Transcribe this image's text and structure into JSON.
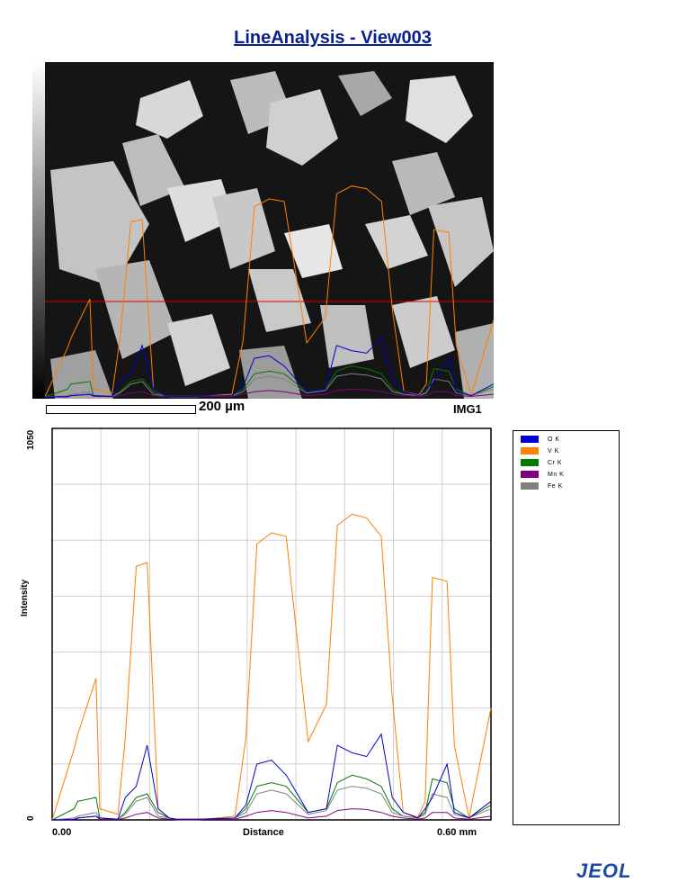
{
  "title": "LineAnalysis - View003",
  "image": {
    "scale_label": "200 µm",
    "image_label": "IMG1"
  },
  "chart_data": {
    "type": "line",
    "xlabel": "Distance",
    "ylabel": "Intensity",
    "x_tick_labels": [
      "0.00",
      "0.60 mm"
    ],
    "y_tick_labels": [
      "0",
      "1050"
    ],
    "xlim": [
      0,
      0.6
    ],
    "ylim": [
      0,
      1050
    ],
    "grid": true,
    "legend": "right",
    "x": [
      0.0,
      0.03,
      0.035,
      0.06,
      0.065,
      0.09,
      0.1,
      0.115,
      0.13,
      0.145,
      0.16,
      0.17,
      0.2,
      0.25,
      0.265,
      0.28,
      0.3,
      0.32,
      0.35,
      0.375,
      0.39,
      0.41,
      0.43,
      0.45,
      0.465,
      0.48,
      0.5,
      0.51,
      0.52,
      0.54,
      0.55,
      0.57,
      0.6
    ],
    "series": [
      {
        "name": "O K",
        "color": "#0000cc",
        "values": [
          0,
          0,
          5,
          10,
          5,
          2,
          60,
          90,
          200,
          30,
          5,
          2,
          2,
          5,
          40,
          150,
          160,
          120,
          20,
          30,
          200,
          180,
          170,
          230,
          60,
          20,
          5,
          30,
          60,
          150,
          20,
          5,
          50
        ]
      },
      {
        "name": "V K",
        "color": "#ff7f00",
        "values": [
          0,
          190,
          230,
          380,
          30,
          15,
          220,
          680,
          690,
          30,
          5,
          0,
          0,
          10,
          220,
          740,
          770,
          760,
          210,
          310,
          790,
          820,
          810,
          760,
          330,
          20,
          8,
          50,
          650,
          640,
          200,
          5,
          300
        ]
      },
      {
        "name": "Cr K",
        "color": "#007a00",
        "values": [
          0,
          30,
          50,
          60,
          5,
          2,
          20,
          60,
          70,
          20,
          5,
          2,
          2,
          5,
          30,
          90,
          100,
          90,
          20,
          30,
          100,
          120,
          110,
          90,
          30,
          10,
          5,
          20,
          110,
          100,
          30,
          5,
          40
        ]
      },
      {
        "name": "Mn K",
        "color": "#800080",
        "values": [
          0,
          2,
          5,
          10,
          2,
          1,
          5,
          15,
          20,
          5,
          2,
          1,
          1,
          2,
          10,
          20,
          25,
          20,
          5,
          10,
          25,
          30,
          28,
          20,
          10,
          5,
          2,
          5,
          20,
          20,
          5,
          2,
          10
        ]
      },
      {
        "name": "Fe K",
        "color": "#808080",
        "values": [
          0,
          5,
          10,
          20,
          5,
          2,
          15,
          50,
          60,
          10,
          5,
          2,
          2,
          5,
          20,
          70,
          80,
          70,
          15,
          25,
          80,
          90,
          85,
          70,
          20,
          10,
          5,
          15,
          70,
          60,
          15,
          5,
          30
        ]
      }
    ]
  },
  "logo": "JEOL"
}
